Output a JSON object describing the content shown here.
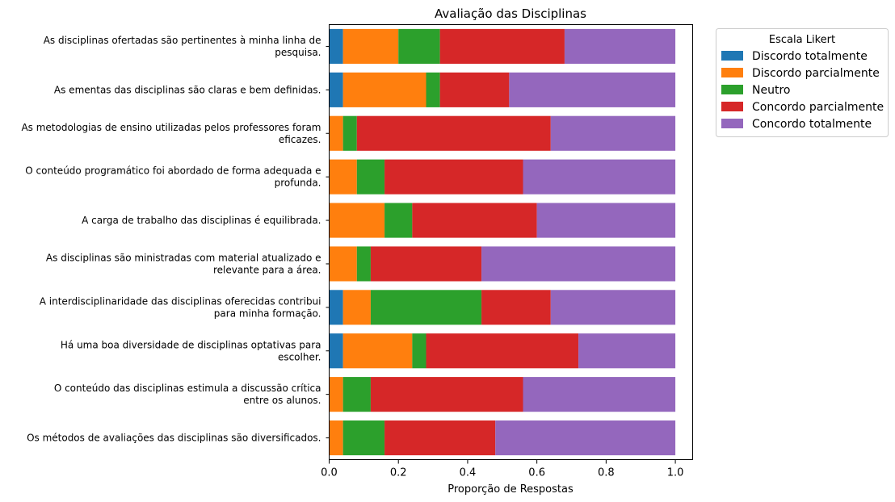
{
  "chart_data": {
    "type": "bar",
    "orientation": "horizontal",
    "stacked": true,
    "title": "Avaliação das Disciplinas",
    "xlabel": "Proporção de Respostas",
    "ylabel": "",
    "xlim": [
      0,
      1.05
    ],
    "xticks": [
      "0.0",
      "0.2",
      "0.4",
      "0.6",
      "0.8",
      "1.0"
    ],
    "grid": false,
    "legend_title": "Escala Likert",
    "legend_placement": "outside-upper-right",
    "categories": [
      [
        "As disciplinas ofertadas são pertinentes à minha linha de",
        "pesquisa."
      ],
      [
        "As ementas das disciplinas são claras e bem definidas."
      ],
      [
        "As metodologias de ensino utilizadas pelos professores foram",
        "eficazes."
      ],
      [
        "O conteúdo programático foi abordado de forma adequada e",
        "profunda."
      ],
      [
        "A carga de trabalho das disciplinas é equilibrada."
      ],
      [
        "As disciplinas são ministradas com material atualizado e",
        "relevante para a área."
      ],
      [
        "A interdisciplinaridade das disciplinas oferecidas contribui",
        "para minha formação."
      ],
      [
        "Há uma boa diversidade de disciplinas optativas para",
        "escolher."
      ],
      [
        "O conteúdo das disciplinas estimula a discussão crítica",
        "entre os alunos."
      ],
      [
        "Os métodos de avaliações das disciplinas são diversificados."
      ]
    ],
    "series": [
      {
        "name": "Discordo totalmente",
        "color": "#1f77b4",
        "values": [
          0.04,
          0.04,
          0.0,
          0.0,
          0.0,
          0.0,
          0.04,
          0.04,
          0.0,
          0.0
        ]
      },
      {
        "name": "Discordo parcialmente",
        "color": "#ff7f0e",
        "values": [
          0.16,
          0.24,
          0.04,
          0.08,
          0.16,
          0.08,
          0.08,
          0.2,
          0.04,
          0.04
        ]
      },
      {
        "name": "Neutro",
        "color": "#2ca02c",
        "values": [
          0.12,
          0.04,
          0.04,
          0.08,
          0.08,
          0.04,
          0.32,
          0.04,
          0.08,
          0.12
        ]
      },
      {
        "name": "Concordo parcialmente",
        "color": "#d62728",
        "values": [
          0.36,
          0.2,
          0.56,
          0.4,
          0.36,
          0.32,
          0.2,
          0.44,
          0.44,
          0.32
        ]
      },
      {
        "name": "Concordo totalmente",
        "color": "#9467bd",
        "values": [
          0.32,
          0.48,
          0.36,
          0.44,
          0.4,
          0.56,
          0.36,
          0.28,
          0.44,
          0.52
        ]
      }
    ]
  }
}
